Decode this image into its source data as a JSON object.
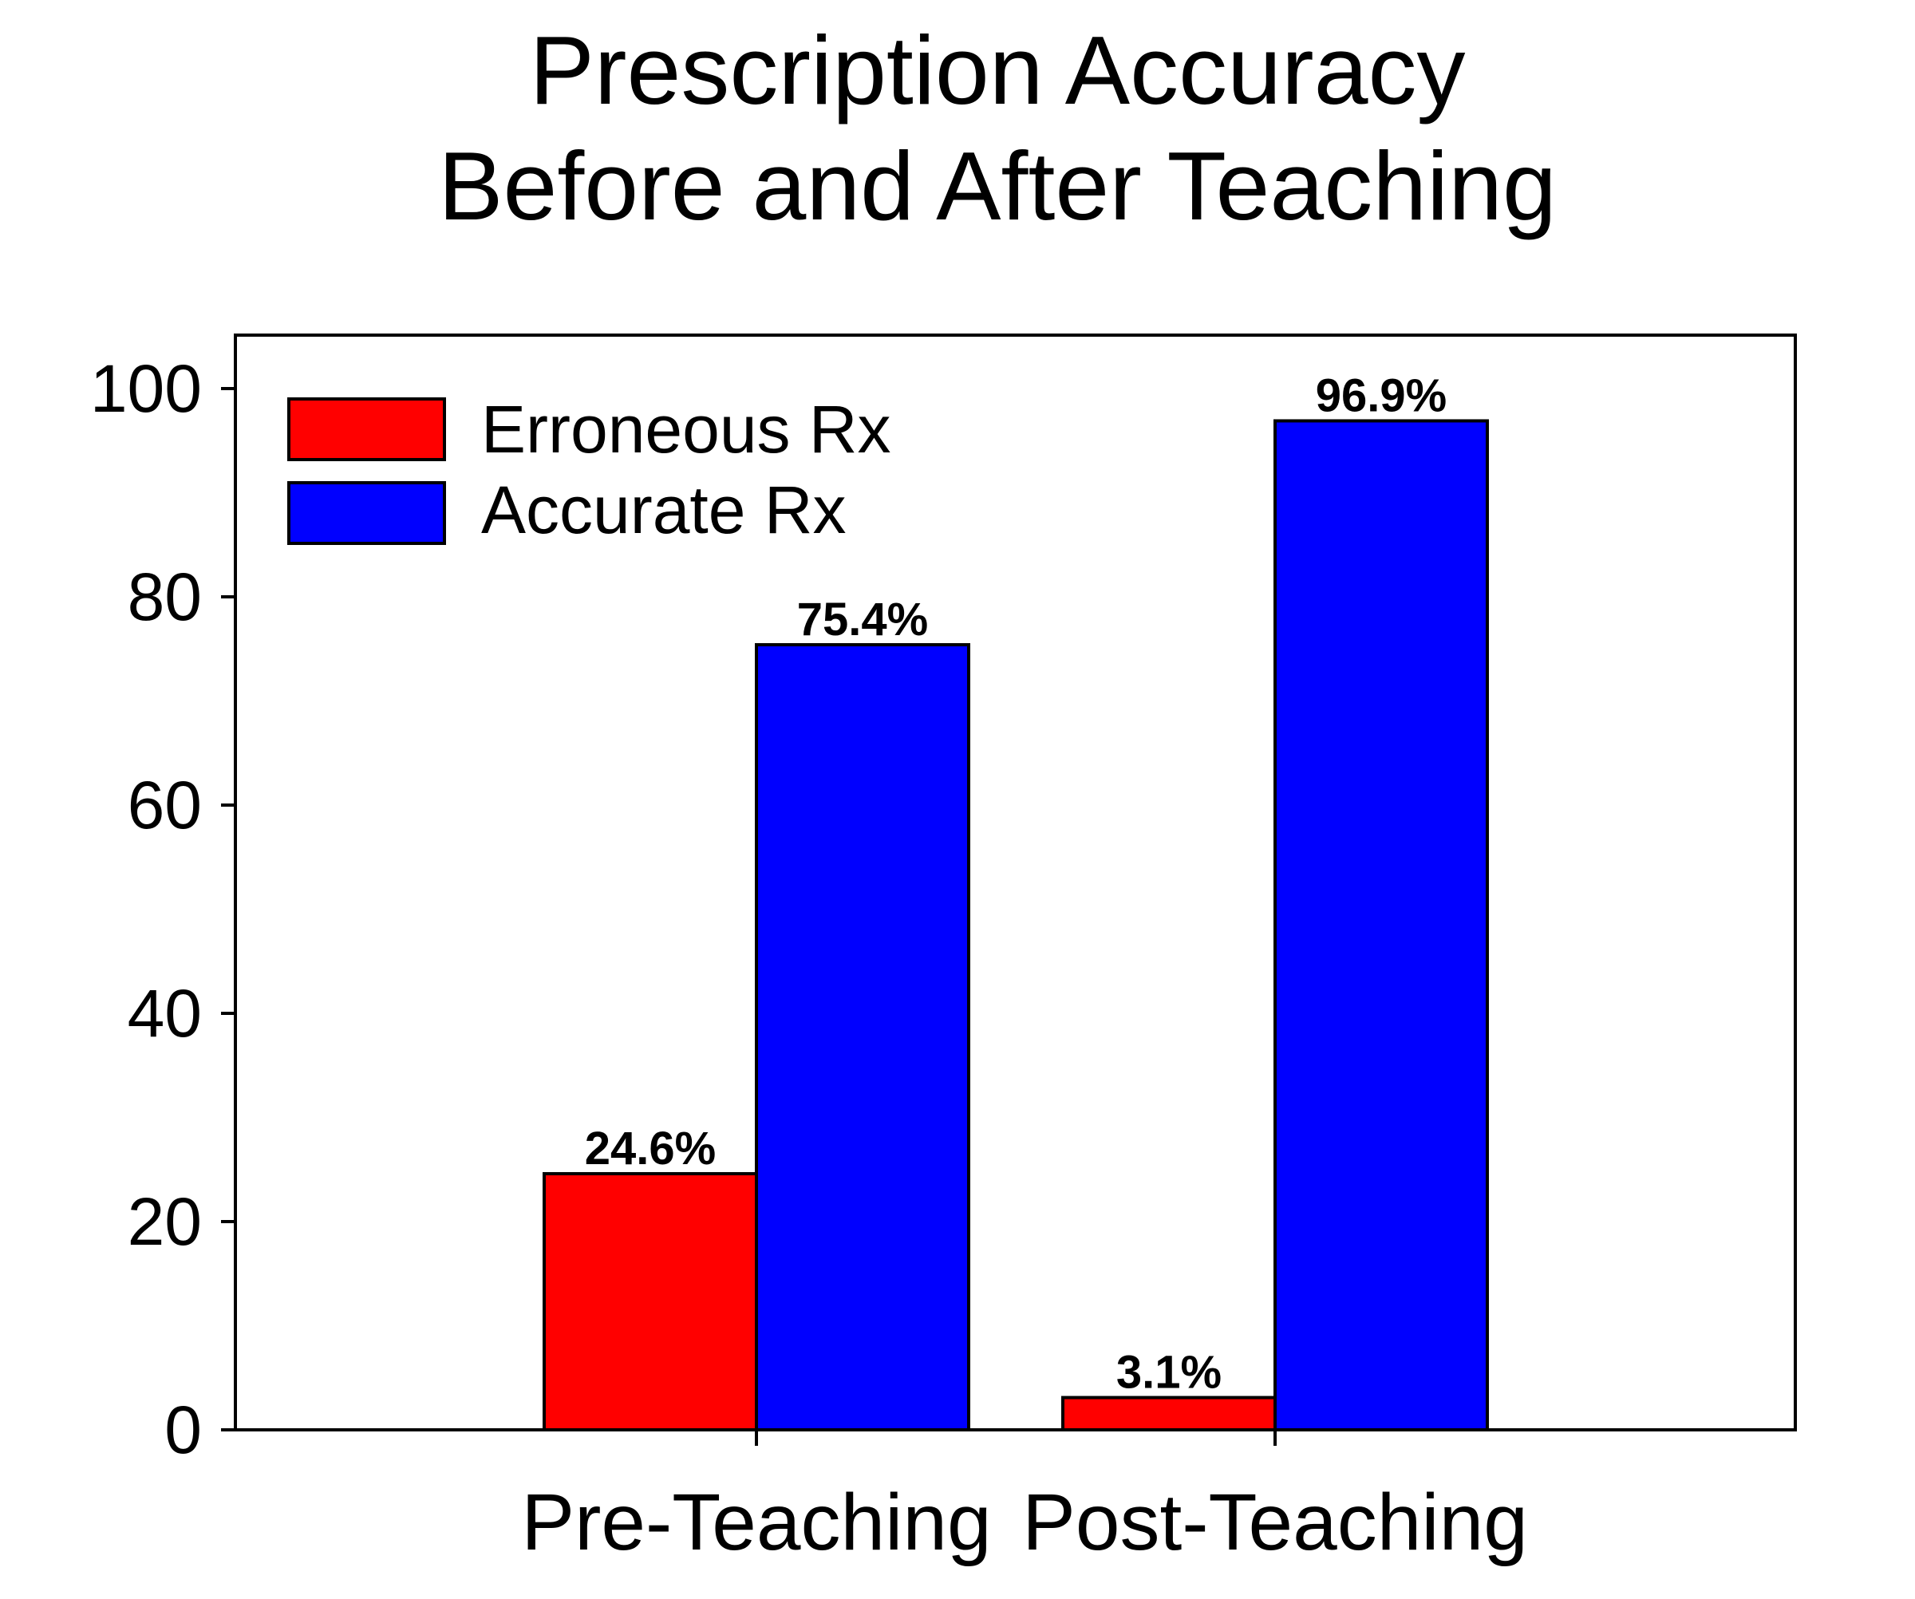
{
  "chart_data": {
    "type": "bar",
    "title": [
      "Prescription Accuracy",
      "Before and After Teaching"
    ],
    "xlabel": "",
    "ylabel": "",
    "categories": [
      "Pre-Teaching",
      "Post-Teaching"
    ],
    "series": [
      {
        "name": "Erroneous Rx",
        "color": "#ff0000",
        "values": [
          24.6,
          3.1
        ],
        "labels": [
          "24.6%",
          "3.1%"
        ]
      },
      {
        "name": "Accurate Rx",
        "color": "#0000ff",
        "values": [
          75.4,
          96.9
        ],
        "labels": [
          "75.4%",
          "96.9%"
        ]
      }
    ],
    "ylim": [
      0,
      105
    ],
    "yticks": [
      0,
      20,
      40,
      60,
      80,
      100
    ],
    "ytick_labels": [
      "0",
      "20",
      "40",
      "60",
      "80",
      "100"
    ],
    "grid": false,
    "legend_position": "top-left",
    "bar_outline_color": "#000000"
  }
}
